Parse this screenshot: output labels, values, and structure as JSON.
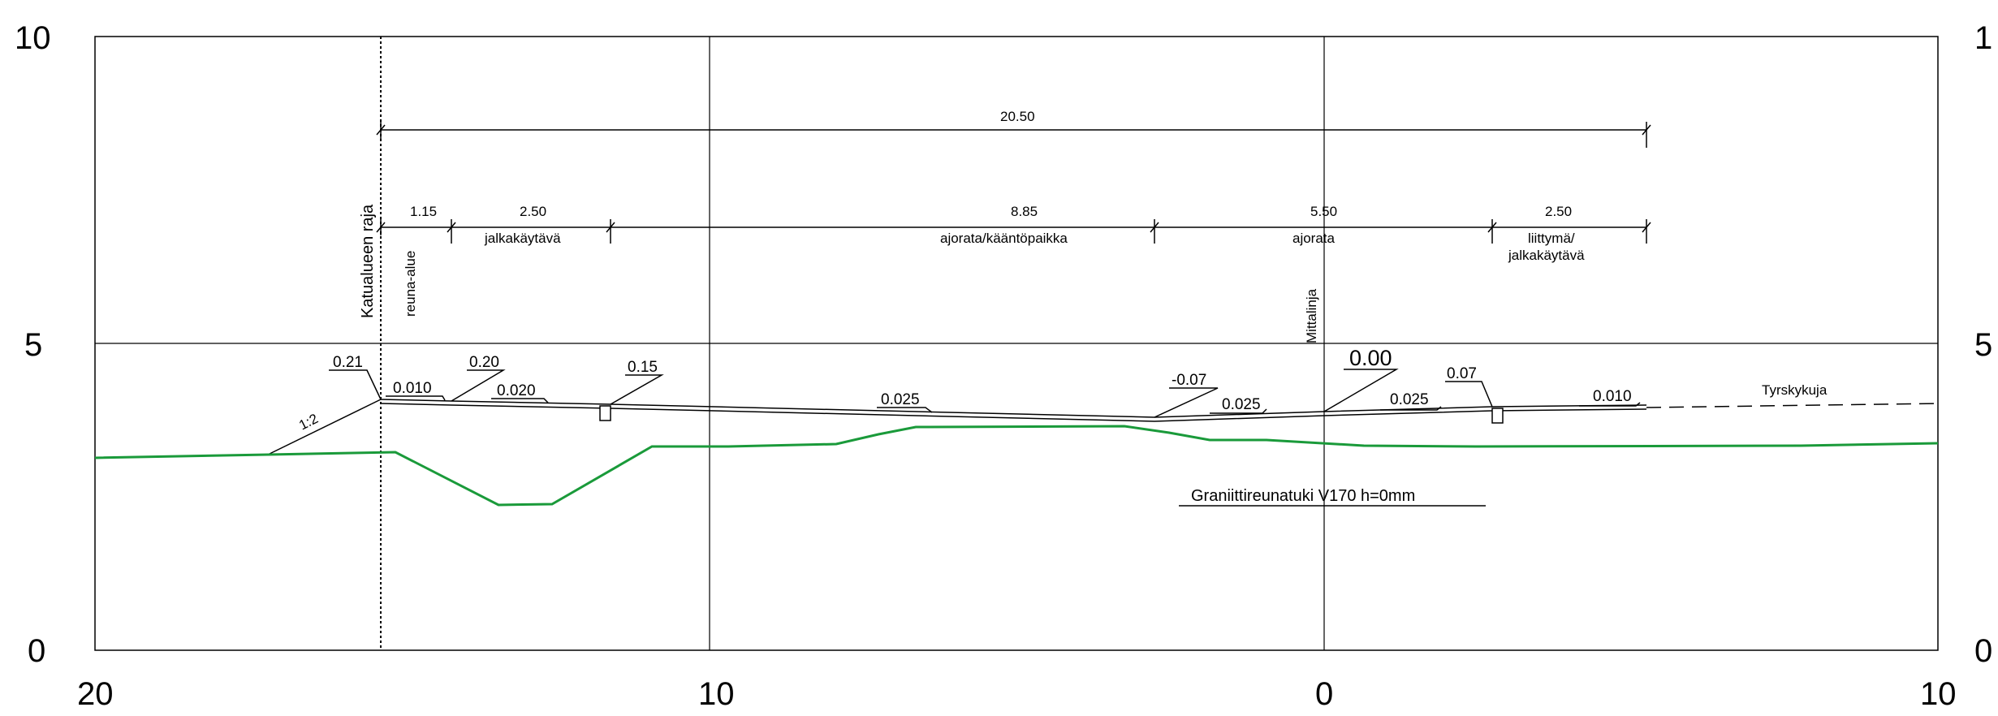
{
  "axes": {
    "x_ticks": [
      "20",
      "10",
      "0",
      "10"
    ],
    "y_left": [
      "10",
      "5",
      "0"
    ],
    "y_right": [
      "1",
      "5",
      "0"
    ]
  },
  "labels": {
    "katualueen_raja": "Katualueen raja",
    "reuna_alue": "reuna-alue",
    "mittalinja": "Mittalinja",
    "tyrskykuja": "Tyrskykuja",
    "graniitti": "Graniittireunatuki V170 h=0mm",
    "ratio": "1:2"
  },
  "dimensions": {
    "total": "20.50",
    "segments": [
      {
        "value": "1.15",
        "name": ""
      },
      {
        "value": "2.50",
        "name": "jalkakäytävä"
      },
      {
        "value": "8.85",
        "name": "ajorata/kääntöpaikka"
      },
      {
        "value": "5.50",
        "name": "ajorata"
      },
      {
        "value": "2.50",
        "name_line1": "liittymä/",
        "name_line2": "jalkakäytävä"
      }
    ]
  },
  "elevations": {
    "e1": "0.21",
    "e2": "0.20",
    "e3": "0.15",
    "e4": "-0.07",
    "e5": "0.00",
    "e6": "0.07"
  },
  "slopes": {
    "s1": "0.010",
    "s2": "0.020",
    "s3": "0.025",
    "s4": "0.025",
    "s5": "0.025",
    "s6": "0.010"
  },
  "colors": {
    "terrain": "#1a9a3a",
    "line": "#000000",
    "background": "#ffffff"
  }
}
